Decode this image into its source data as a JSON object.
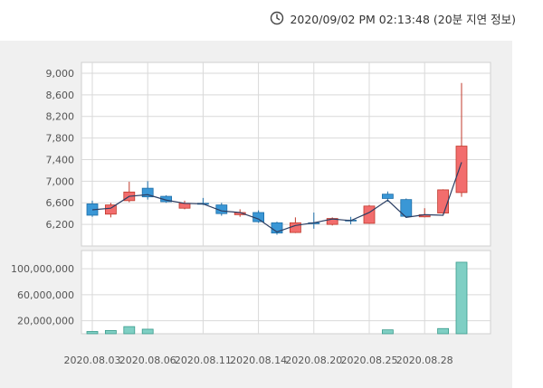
{
  "header": {
    "timestamp": "2020/09/02 PM 02:13:48 (20분 지연 정보)",
    "clock_icon": "clock-icon"
  },
  "colors": {
    "up": "#f26d6d",
    "up_stroke": "#c0392b",
    "down": "#3a97d6",
    "down_stroke": "#1f6fa8",
    "ma_line": "#2b3e63",
    "volume": "#7fcfc4",
    "volume_stroke": "#3a9c8c",
    "grid": "#d9d9d9",
    "panel_bg": "#f0f0f0",
    "plot_bg": "#ffffff"
  },
  "chart_data": [
    {
      "type": "candlestick",
      "title": "",
      "ylim": [
        5800,
        9200
      ],
      "y_ticks": [
        "9,000",
        "8,600",
        "8,200",
        "7,800",
        "7,400",
        "7,000",
        "6,600",
        "6,200"
      ],
      "y_tick_values": [
        9000,
        8600,
        8200,
        7800,
        7400,
        7000,
        6600,
        6200
      ],
      "x_ticks": [
        "2020.08.03",
        "2020.08.06",
        "2020.08.11",
        "2020.08.14",
        "2020.08.20",
        "2020.08.25",
        "2020.08.28"
      ],
      "x_tick_index": [
        0,
        3,
        6,
        9,
        12,
        15,
        18
      ],
      "candles": [
        {
          "date": "2020.08.03",
          "open": 6580,
          "high": 6640,
          "low": 6340,
          "close": 6370
        },
        {
          "date": "2020.08.04",
          "open": 6390,
          "high": 6600,
          "low": 6330,
          "close": 6560
        },
        {
          "date": "2020.08.05",
          "open": 6640,
          "high": 6990,
          "low": 6610,
          "close": 6800
        },
        {
          "date": "2020.08.06",
          "open": 6870,
          "high": 7000,
          "low": 6660,
          "close": 6710
        },
        {
          "date": "2020.08.07",
          "open": 6720,
          "high": 6740,
          "low": 6600,
          "close": 6620
        },
        {
          "date": "2020.08.10",
          "open": 6500,
          "high": 6640,
          "low": 6480,
          "close": 6590
        },
        {
          "date": "2020.08.11",
          "open": 6590,
          "high": 6690,
          "low": 6560,
          "close": 6580
        },
        {
          "date": "2020.08.12",
          "open": 6560,
          "high": 6600,
          "low": 6360,
          "close": 6400
        },
        {
          "date": "2020.08.13",
          "open": 6380,
          "high": 6480,
          "low": 6340,
          "close": 6420
        },
        {
          "date": "2020.08.14",
          "open": 6420,
          "high": 6460,
          "low": 6230,
          "close": 6250
        },
        {
          "date": "2020.08.18",
          "open": 6230,
          "high": 6250,
          "low": 6010,
          "close": 6040
        },
        {
          "date": "2020.08.19",
          "open": 6050,
          "high": 6330,
          "low": 6040,
          "close": 6230
        },
        {
          "date": "2020.08.20",
          "open": 6230,
          "high": 6420,
          "low": 6120,
          "close": 6220
        },
        {
          "date": "2020.08.21",
          "open": 6200,
          "high": 6330,
          "low": 6180,
          "close": 6310
        },
        {
          "date": "2020.08.24",
          "open": 6280,
          "high": 6340,
          "low": 6200,
          "close": 6270
        },
        {
          "date": "2020.08.25",
          "open": 6220,
          "high": 6560,
          "low": 6210,
          "close": 6540
        },
        {
          "date": "2020.08.26",
          "open": 6760,
          "high": 6810,
          "low": 6620,
          "close": 6680
        },
        {
          "date": "2020.08.27",
          "open": 6660,
          "high": 6680,
          "low": 6320,
          "close": 6350
        },
        {
          "date": "2020.08.28",
          "open": 6340,
          "high": 6500,
          "low": 6330,
          "close": 6380
        },
        {
          "date": "2020.08.31",
          "open": 6410,
          "high": 6850,
          "low": 6400,
          "close": 6840
        },
        {
          "date": "2020.09.01",
          "open": 6790,
          "high": 8820,
          "low": 6710,
          "close": 7650
        }
      ],
      "line": [
        6470,
        6500,
        6720,
        6750,
        6650,
        6590,
        6580,
        6450,
        6420,
        6300,
        6060,
        6180,
        6230,
        6300,
        6270,
        6420,
        6650,
        6330,
        6380,
        6370,
        7350
      ]
    },
    {
      "type": "bar",
      "title": "",
      "ylim": [
        0,
        128000000
      ],
      "y_ticks": [
        "100,000,000",
        "60,000,000",
        "20,000,000"
      ],
      "y_tick_values": [
        100000000,
        60000000,
        20000000
      ],
      "values": [
        3500000,
        5000000,
        11000000,
        7000000,
        null,
        null,
        null,
        null,
        null,
        null,
        null,
        null,
        null,
        null,
        null,
        null,
        6000000,
        null,
        null,
        8000000,
        110000000
      ]
    }
  ]
}
